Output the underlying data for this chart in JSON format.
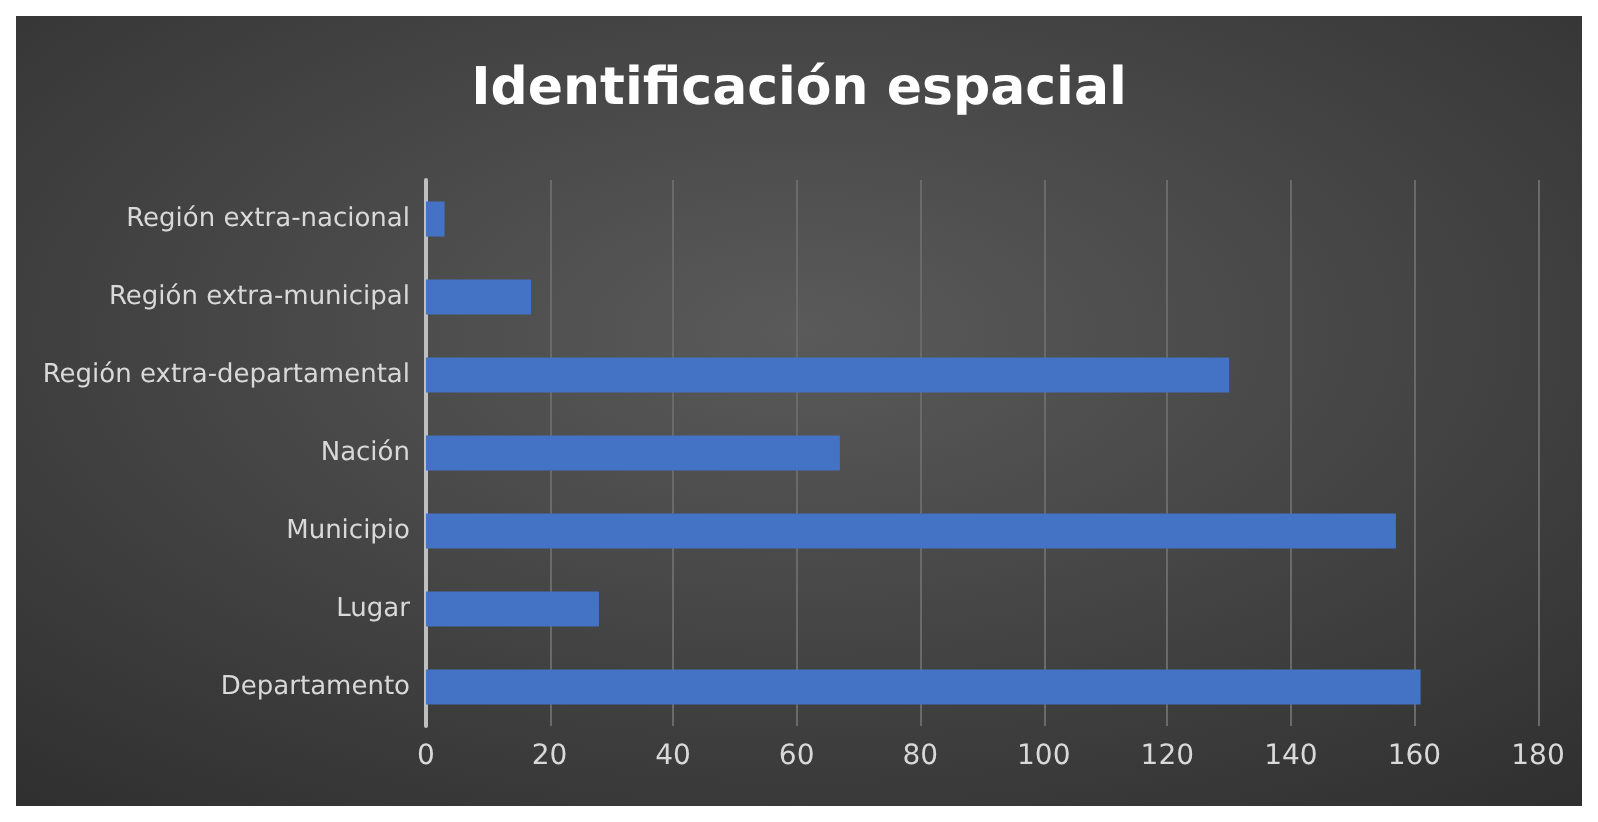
{
  "chart_data": {
    "type": "bar",
    "orientation": "horizontal",
    "title": "Identificación espacial",
    "categories": [
      "Región extra-nacional",
      "Región extra-municipal",
      "Región extra-departamental",
      "Nación",
      "Municipio",
      "Lugar",
      "Departamento"
    ],
    "values": [
      3,
      17,
      130,
      67,
      157,
      28,
      161
    ],
    "color": "#4472c4",
    "xlim": [
      0,
      180
    ],
    "xticks": [
      0,
      20,
      40,
      60,
      80,
      100,
      120,
      140,
      160,
      180
    ],
    "grid": "x"
  }
}
